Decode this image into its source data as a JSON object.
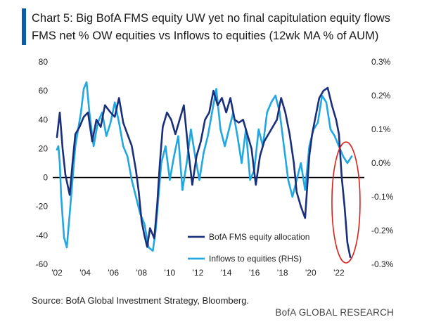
{
  "title": {
    "line1": "Chart 5: Big BofA FMS equity UW yet no final capitulation equity flows",
    "line2": "FMS net % OW equities vs Inflows to equities (12wk MA % of AUM)"
  },
  "source": "Source: BofA Global Investment Strategy, Bloomberg.",
  "brand": "BofA GLOBAL RESEARCH",
  "colors": {
    "fms": "#1a2f7a",
    "flows": "#22a7e0",
    "zero": "#000000",
    "circle": "#d9221c",
    "accent": "#0b5cab"
  },
  "chart_data": {
    "type": "line",
    "title": "FMS net % OW equities vs Inflows to equities (12wk MA % of AUM)",
    "x_tick_labels": [
      "'02",
      "'04",
      "'06",
      "'08",
      "'10",
      "'12",
      "'14",
      "'16",
      "'18",
      "'20",
      "'22"
    ],
    "x_tick_years": [
      2002,
      2004,
      2006,
      2008,
      2010,
      2012,
      2014,
      2016,
      2018,
      2020,
      2022
    ],
    "xlim": [
      2001.7,
      2023.8
    ],
    "left_axis": {
      "ylim": [
        -60,
        80
      ],
      "ticks": [
        -60,
        -40,
        -20,
        0,
        20,
        40,
        60,
        80
      ],
      "tick_labels": [
        "-60",
        "-40",
        "-20",
        "0",
        "20",
        "40",
        "60",
        "80"
      ]
    },
    "right_axis": {
      "ylim": [
        -0.3,
        0.3
      ],
      "ticks": [
        -0.3,
        -0.2,
        -0.1,
        0.0,
        0.1,
        0.2,
        0.3
      ],
      "tick_labels": [
        "-0.3%",
        "-0.2%",
        "-0.1%",
        "0.0%",
        "0.1%",
        "0.2%",
        "0.3%"
      ]
    },
    "legend": {
      "position": "bottom-right",
      "entries": [
        "BofA FMS equity allocation",
        "Inflows to equities (RHS)"
      ]
    },
    "annotation": "red circle around 2022 lows",
    "series": [
      {
        "name": "BofA FMS equity allocation",
        "axis": "left",
        "x": [
          2002.0,
          2002.2,
          2002.4,
          2002.6,
          2002.9,
          2003.1,
          2003.3,
          2003.6,
          2003.9,
          2004.2,
          2004.5,
          2004.8,
          2005.1,
          2005.4,
          2005.8,
          2006.1,
          2006.4,
          2006.7,
          2007.0,
          2007.3,
          2007.6,
          2007.8,
          2008.0,
          2008.2,
          2008.4,
          2008.6,
          2008.9,
          2009.1,
          2009.3,
          2009.5,
          2009.8,
          2010.1,
          2010.4,
          2010.7,
          2011.0,
          2011.3,
          2011.6,
          2011.9,
          2012.2,
          2012.5,
          2012.8,
          2013.1,
          2013.4,
          2013.7,
          2014.0,
          2014.3,
          2014.6,
          2014.9,
          2015.2,
          2015.5,
          2015.8,
          2016.1,
          2016.4,
          2016.7,
          2017.0,
          2017.3,
          2017.6,
          2017.9,
          2018.2,
          2018.5,
          2018.8,
          2019.0,
          2019.3,
          2019.6,
          2019.9,
          2020.1,
          2020.3,
          2020.6,
          2020.9,
          2021.2,
          2021.5,
          2021.8,
          2022.0,
          2022.2,
          2022.4,
          2022.6,
          2022.8
        ],
        "values": [
          28,
          45,
          20,
          2,
          -12,
          10,
          30,
          35,
          42,
          45,
          25,
          40,
          35,
          50,
          45,
          42,
          55,
          38,
          30,
          22,
          5,
          -10,
          -30,
          -40,
          -48,
          -35,
          -42,
          -20,
          10,
          35,
          45,
          40,
          30,
          40,
          50,
          20,
          -5,
          15,
          25,
          40,
          45,
          60,
          50,
          55,
          45,
          55,
          40,
          38,
          40,
          30,
          20,
          -5,
          15,
          25,
          30,
          35,
          40,
          55,
          45,
          30,
          10,
          -10,
          -20,
          -28,
          15,
          30,
          40,
          55,
          60,
          62,
          50,
          40,
          30,
          0,
          -20,
          -45,
          -55
        ]
      },
      {
        "name": "Inflows to equities (RHS)",
        "axis": "right",
        "x": [
          2002.0,
          2002.1,
          2002.2,
          2002.3,
          2002.5,
          2002.7,
          2002.9,
          2003.1,
          2003.3,
          2003.5,
          2003.7,
          2003.9,
          2004.1,
          2004.3,
          2004.6,
          2004.9,
          2005.2,
          2005.5,
          2005.8,
          2006.1,
          2006.4,
          2006.7,
          2007.0,
          2007.3,
          2007.6,
          2007.9,
          2008.2,
          2008.5,
          2008.8,
          2009.0,
          2009.2,
          2009.4,
          2009.7,
          2010.0,
          2010.3,
          2010.6,
          2010.9,
          2011.2,
          2011.5,
          2011.8,
          2012.1,
          2012.4,
          2012.7,
          2013.0,
          2013.3,
          2013.6,
          2013.9,
          2014.2,
          2014.5,
          2014.8,
          2015.1,
          2015.4,
          2015.7,
          2016.0,
          2016.3,
          2016.6,
          2016.9,
          2017.2,
          2017.5,
          2017.8,
          2018.1,
          2018.4,
          2018.7,
          2019.0,
          2019.3,
          2019.6,
          2019.9,
          2020.2,
          2020.5,
          2020.8,
          2021.1,
          2021.4,
          2021.7,
          2022.0,
          2022.3,
          2022.6,
          2022.9
        ],
        "values": [
          0.04,
          0.05,
          0.0,
          -0.1,
          -0.22,
          -0.25,
          -0.15,
          -0.05,
          0.05,
          0.1,
          0.15,
          0.22,
          0.24,
          0.15,
          0.05,
          0.12,
          0.15,
          0.08,
          0.12,
          0.18,
          0.12,
          0.05,
          0.02,
          -0.05,
          -0.1,
          -0.15,
          -0.18,
          -0.25,
          -0.26,
          -0.2,
          -0.1,
          0.0,
          0.05,
          -0.05,
          0.02,
          0.08,
          -0.08,
          0.0,
          0.1,
          0.02,
          -0.05,
          0.03,
          0.08,
          0.15,
          0.22,
          0.1,
          0.05,
          0.1,
          0.15,
          0.08,
          0.0,
          0.1,
          -0.05,
          -0.02,
          0.1,
          0.05,
          0.15,
          0.18,
          0.2,
          0.15,
          0.05,
          -0.05,
          -0.1,
          -0.05,
          0.0,
          -0.08,
          0.05,
          0.1,
          0.12,
          0.2,
          0.18,
          0.1,
          0.08,
          0.05,
          0.02,
          0.0,
          0.02
        ]
      }
    ]
  }
}
